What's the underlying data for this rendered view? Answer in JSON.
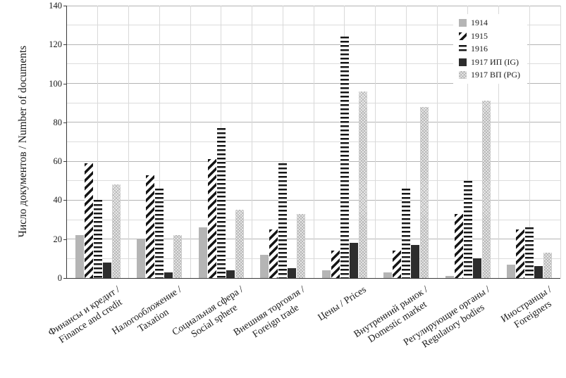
{
  "chart_data": {
    "type": "bar",
    "title": "",
    "xlabel": "",
    "ylabel": "Число документов / Number of documents",
    "ylim": [
      0,
      140
    ],
    "y_major_step": 20,
    "y_minor_step": 10,
    "y_ticks": [
      0,
      20,
      40,
      60,
      80,
      100,
      120,
      140
    ],
    "grid": true,
    "legend_position": "top-right-inside",
    "categories": [
      {
        "ru": "Финансы и кредит /",
        "en": "Finance and credit"
      },
      {
        "ru": "Налогообложение /",
        "en": "Taxation"
      },
      {
        "ru": "Социальная сфера /",
        "en": "Social sphere"
      },
      {
        "ru": "Внешняя торговля /",
        "en": "Foreign trade"
      },
      {
        "ru": "Цены / Prices",
        "en": ""
      },
      {
        "ru": "Внутренний рынок /",
        "en": "Domestic market"
      },
      {
        "ru": "Регулирующие органы /",
        "en": "Regulatory bodies"
      },
      {
        "ru": "Иностранцы /",
        "en": "Foreigners"
      }
    ],
    "series": [
      {
        "name": "1914",
        "pattern": "solid-gray",
        "color": "#b5b5b5",
        "values": [
          22,
          20,
          26,
          12,
          4,
          3,
          1,
          7
        ]
      },
      {
        "name": "1915",
        "pattern": "diagonal-hatch",
        "color": "#161616",
        "values": [
          59,
          53,
          61,
          25,
          14,
          14,
          33,
          25
        ]
      },
      {
        "name": "1916",
        "pattern": "horizontal-stripes",
        "color": "#161616",
        "values": [
          40,
          46,
          77,
          59,
          124,
          46,
          50,
          26
        ]
      },
      {
        "name": "1917 ИП (IG)",
        "pattern": "solid-dark",
        "color": "#2d2d2d",
        "values": [
          8,
          3,
          4,
          5,
          18,
          17,
          10,
          6
        ]
      },
      {
        "name": "1917 ВП (PG)",
        "pattern": "dotted-light",
        "color": "#ececec",
        "values": [
          48,
          22,
          35,
          33,
          96,
          88,
          91,
          13
        ]
      }
    ]
  }
}
